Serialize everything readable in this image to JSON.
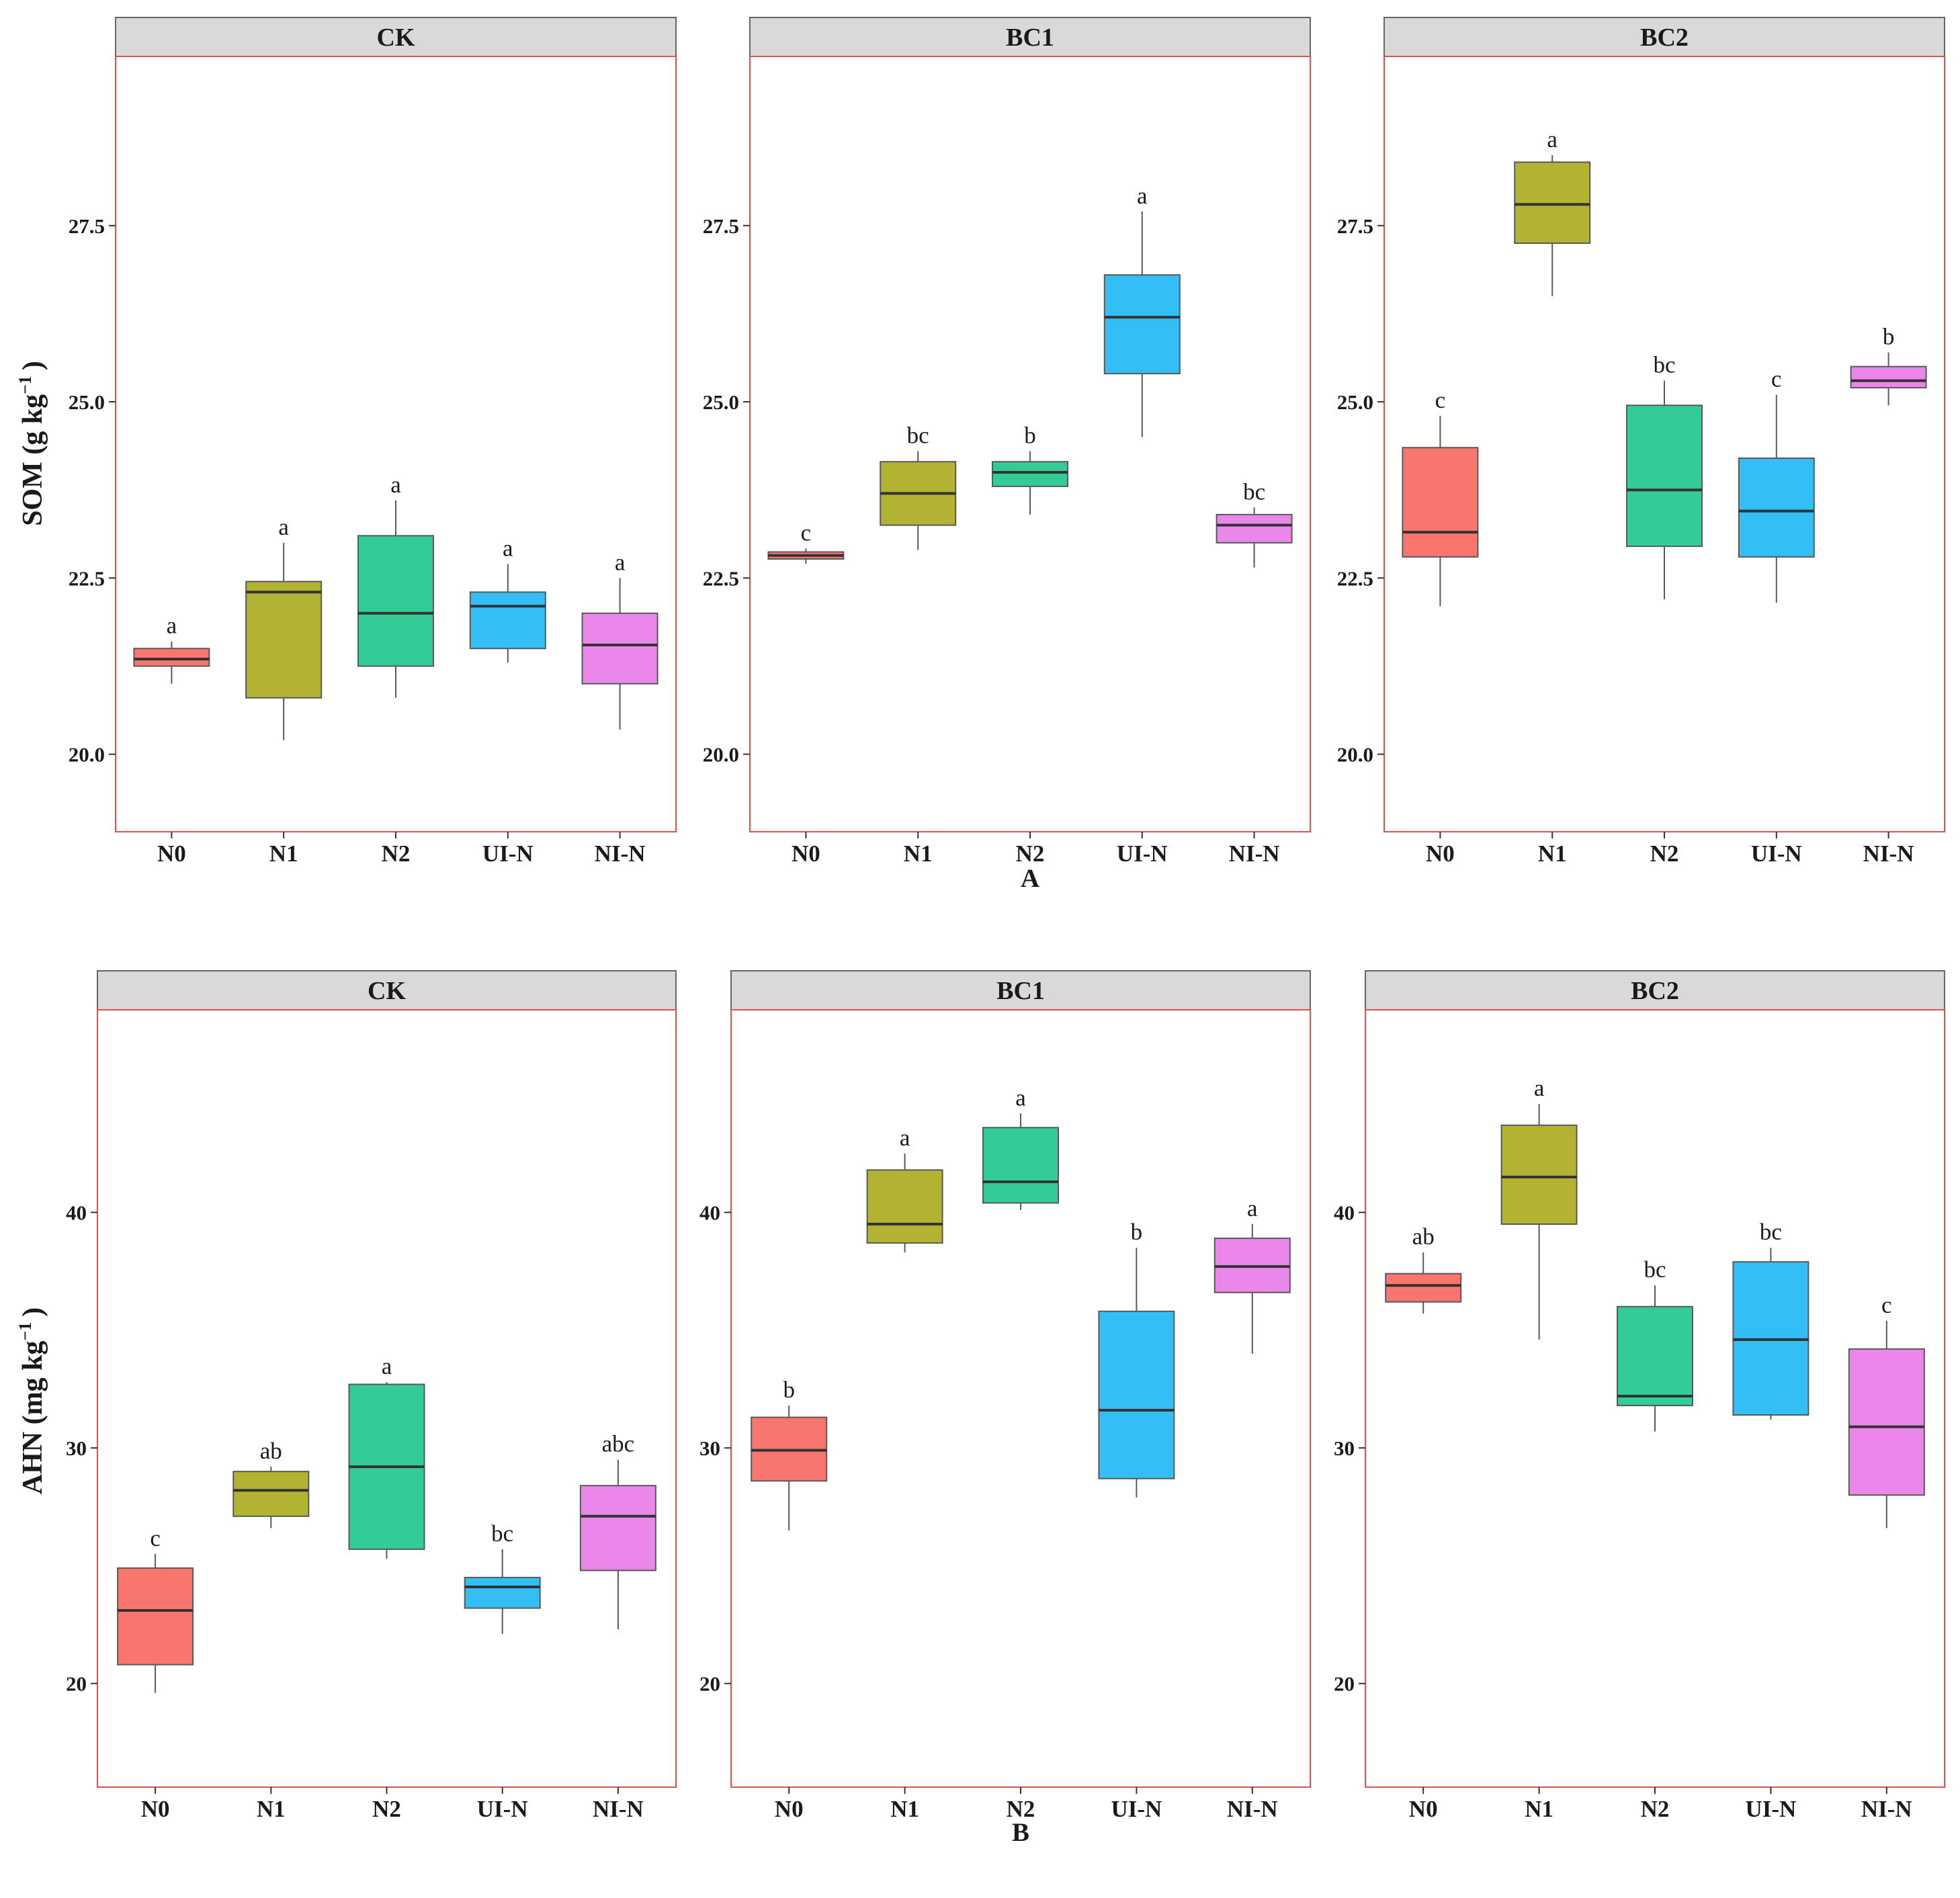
{
  "chart_data": [
    {
      "type": "boxplot",
      "figure_label": "A",
      "ylabel_main": "SOM (g kg",
      "ylabel_sup": "−1",
      "ylabel_close": ")",
      "ylim": [
        18.9,
        29.9
      ],
      "yticks": [
        20.0,
        22.5,
        25.0,
        27.5
      ],
      "ytick_labels": [
        "20.0",
        "22.5",
        "25.0",
        "27.5"
      ],
      "categories": [
        "N0",
        "N1",
        "N2",
        "UI-N",
        "NI-N"
      ],
      "colors": [
        "#F8766D",
        "#B3B333",
        "#33CC96",
        "#33BFF5",
        "#EB87EB"
      ],
      "facets": [
        {
          "title": "CK",
          "boxes": [
            {
              "min": 21.0,
              "q1": 21.25,
              "median": 21.35,
              "q3": 21.5,
              "max": 21.6,
              "sig": "a"
            },
            {
              "min": 20.2,
              "q1": 20.8,
              "median": 22.3,
              "q3": 22.45,
              "max": 23.0,
              "sig": "a"
            },
            {
              "min": 20.8,
              "q1": 21.25,
              "median": 22.0,
              "q3": 23.1,
              "max": 23.6,
              "sig": "a"
            },
            {
              "min": 21.3,
              "q1": 21.5,
              "median": 22.1,
              "q3": 22.3,
              "max": 22.7,
              "sig": "a"
            },
            {
              "min": 20.35,
              "q1": 21.0,
              "median": 21.55,
              "q3": 22.0,
              "max": 22.5,
              "sig": "a"
            }
          ]
        },
        {
          "title": "BC1",
          "boxes": [
            {
              "min": 22.7,
              "q1": 22.77,
              "median": 22.82,
              "q3": 22.87,
              "max": 22.92,
              "sig": "c"
            },
            {
              "min": 22.9,
              "q1": 23.25,
              "median": 23.7,
              "q3": 24.15,
              "max": 24.3,
              "sig": "bc"
            },
            {
              "min": 23.4,
              "q1": 23.8,
              "median": 24.0,
              "q3": 24.15,
              "max": 24.3,
              "sig": "b"
            },
            {
              "min": 24.5,
              "q1": 25.4,
              "median": 26.2,
              "q3": 26.8,
              "max": 27.7,
              "sig": "a"
            },
            {
              "min": 22.65,
              "q1": 23.0,
              "median": 23.25,
              "q3": 23.4,
              "max": 23.5,
              "sig": "bc"
            }
          ]
        },
        {
          "title": "BC2",
          "boxes": [
            {
              "min": 22.1,
              "q1": 22.8,
              "median": 23.15,
              "q3": 24.35,
              "max": 24.8,
              "sig": "c"
            },
            {
              "min": 26.5,
              "q1": 27.25,
              "median": 27.8,
              "q3": 28.4,
              "max": 28.5,
              "sig": "a"
            },
            {
              "min": 22.2,
              "q1": 22.95,
              "median": 23.75,
              "q3": 24.95,
              "max": 25.3,
              "sig": "bc"
            },
            {
              "min": 22.15,
              "q1": 22.8,
              "median": 23.45,
              "q3": 24.2,
              "max": 25.1,
              "sig": "c"
            },
            {
              "min": 24.95,
              "q1": 25.2,
              "median": 25.3,
              "q3": 25.5,
              "max": 25.7,
              "sig": "b"
            }
          ]
        }
      ]
    },
    {
      "type": "boxplot",
      "figure_label": "B",
      "ylabel_main": "AHN (mg kg",
      "ylabel_sup": "−1",
      "ylabel_close": ")",
      "ylim": [
        15.6,
        48.6
      ],
      "yticks": [
        20,
        30,
        40
      ],
      "ytick_labels": [
        "20",
        "30",
        "40"
      ],
      "categories": [
        "N0",
        "N1",
        "N2",
        "UI-N",
        "NI-N"
      ],
      "colors": [
        "#F8766D",
        "#B3B333",
        "#33CC96",
        "#33BFF5",
        "#EB87EB"
      ],
      "facets": [
        {
          "title": "CK",
          "boxes": [
            {
              "min": 19.6,
              "q1": 20.8,
              "median": 23.1,
              "q3": 24.9,
              "max": 25.5,
              "sig": "c"
            },
            {
              "min": 26.6,
              "q1": 27.1,
              "median": 28.2,
              "q3": 29.0,
              "max": 29.2,
              "sig": "ab"
            },
            {
              "min": 25.3,
              "q1": 25.7,
              "median": 29.2,
              "q3": 32.7,
              "max": 32.8,
              "sig": "a"
            },
            {
              "min": 22.1,
              "q1": 23.2,
              "median": 24.1,
              "q3": 24.5,
              "max": 25.7,
              "sig": "bc"
            },
            {
              "min": 22.3,
              "q1": 24.8,
              "median": 27.1,
              "q3": 28.4,
              "max": 29.5,
              "sig": "abc"
            }
          ]
        },
        {
          "title": "BC1",
          "boxes": [
            {
              "min": 26.5,
              "q1": 28.6,
              "median": 29.9,
              "q3": 31.3,
              "max": 31.8,
              "sig": "b"
            },
            {
              "min": 38.3,
              "q1": 38.7,
              "median": 39.5,
              "q3": 41.8,
              "max": 42.5,
              "sig": "a"
            },
            {
              "min": 40.1,
              "q1": 40.4,
              "median": 41.3,
              "q3": 43.6,
              "max": 44.2,
              "sig": "a"
            },
            {
              "min": 27.9,
              "q1": 28.7,
              "median": 31.6,
              "q3": 35.8,
              "max": 38.5,
              "sig": "b"
            },
            {
              "min": 34.0,
              "q1": 36.6,
              "median": 37.7,
              "q3": 38.9,
              "max": 39.5,
              "sig": "a"
            }
          ]
        },
        {
          "title": "BC2",
          "boxes": [
            {
              "min": 35.7,
              "q1": 36.2,
              "median": 36.9,
              "q3": 37.4,
              "max": 38.3,
              "sig": "ab"
            },
            {
              "min": 34.6,
              "q1": 39.5,
              "median": 41.5,
              "q3": 43.7,
              "max": 44.6,
              "sig": "a"
            },
            {
              "min": 30.7,
              "q1": 31.8,
              "median": 32.2,
              "q3": 36.0,
              "max": 36.9,
              "sig": "bc"
            },
            {
              "min": 31.2,
              "q1": 31.4,
              "median": 34.6,
              "q3": 37.9,
              "max": 38.5,
              "sig": "bc"
            },
            {
              "min": 26.6,
              "q1": 28.0,
              "median": 30.9,
              "q3": 34.2,
              "max": 35.4,
              "sig": "c"
            }
          ]
        }
      ]
    }
  ]
}
